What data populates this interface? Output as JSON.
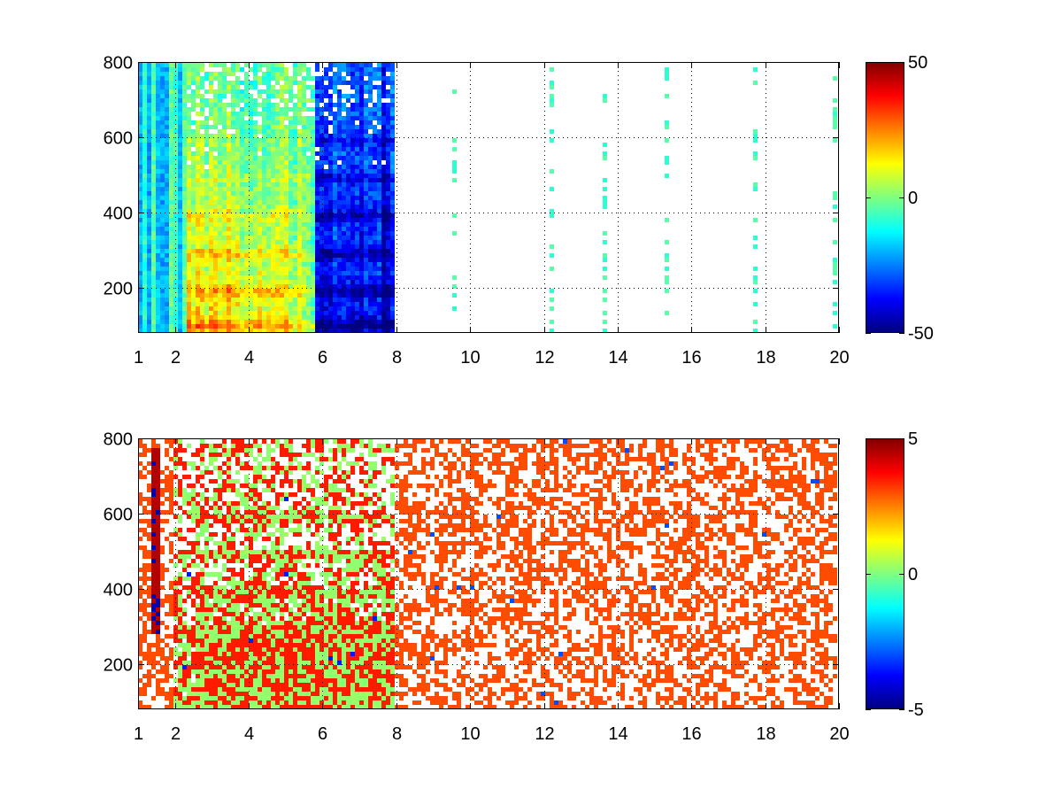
{
  "chart_data": [
    {
      "type": "heatmap",
      "panel": "top",
      "title": "",
      "xlabel": "",
      "ylabel": "",
      "xlim": [
        1,
        20
      ],
      "ylim": [
        80,
        800
      ],
      "x_ticks": [
        1,
        2,
        4,
        6,
        8,
        10,
        12,
        14,
        16,
        18,
        20
      ],
      "x_tick_labels": [
        "1",
        "2",
        "4",
        "6",
        "8",
        "10",
        "12",
        "14",
        "16",
        "18",
        "20"
      ],
      "y_ticks": [
        200,
        400,
        600,
        800
      ],
      "y_tick_labels": [
        "200",
        "400",
        "600",
        "800"
      ],
      "grid": true,
      "colormap": "jet",
      "clim": [
        -50,
        50
      ],
      "colorbar_ticks": [
        -50,
        0,
        50
      ],
      "colorbar_tick_labels": [
        "-50",
        "0",
        "50"
      ],
      "features": {
        "dense_region_x": [
          1.0,
          7.9
        ],
        "sparse_region_x": [
          7.9,
          20
        ],
        "positive_band_x": [
          2.3,
          5.8
        ],
        "negative_band_x": [
          5.6,
          7.9
        ],
        "horizontal_bands_y": [
          100,
          190,
          290,
          390,
          490,
          590
        ],
        "sparse_values": [
          -8,
          -4,
          4,
          8
        ]
      }
    },
    {
      "type": "heatmap",
      "panel": "bottom",
      "title": "",
      "xlabel": "",
      "ylabel": "",
      "xlim": [
        1,
        20
      ],
      "ylim": [
        80,
        800
      ],
      "x_ticks": [
        1,
        2,
        4,
        6,
        8,
        10,
        12,
        14,
        16,
        18,
        20
      ],
      "x_tick_labels": [
        "1",
        "2",
        "4",
        "6",
        "8",
        "10",
        "12",
        "14",
        "16",
        "18",
        "20"
      ],
      "y_ticks": [
        200,
        400,
        600,
        800
      ],
      "y_tick_labels": [
        "200",
        "400",
        "600",
        "800"
      ],
      "grid": true,
      "colormap": "jet",
      "clim": [
        -5,
        5
      ],
      "colorbar_ticks": [
        -5,
        0,
        5
      ],
      "colorbar_tick_labels": [
        "-5",
        "0",
        "5"
      ],
      "features": {
        "dense_region_x": [
          2.0,
          7.9
        ],
        "near_zero_value": 0.3,
        "horizontal_bands_y": [
          100,
          190,
          290,
          390,
          490,
          590
        ],
        "outlier_column_x": 1.45,
        "outlier_column_y": [
          280,
          770
        ]
      }
    }
  ]
}
